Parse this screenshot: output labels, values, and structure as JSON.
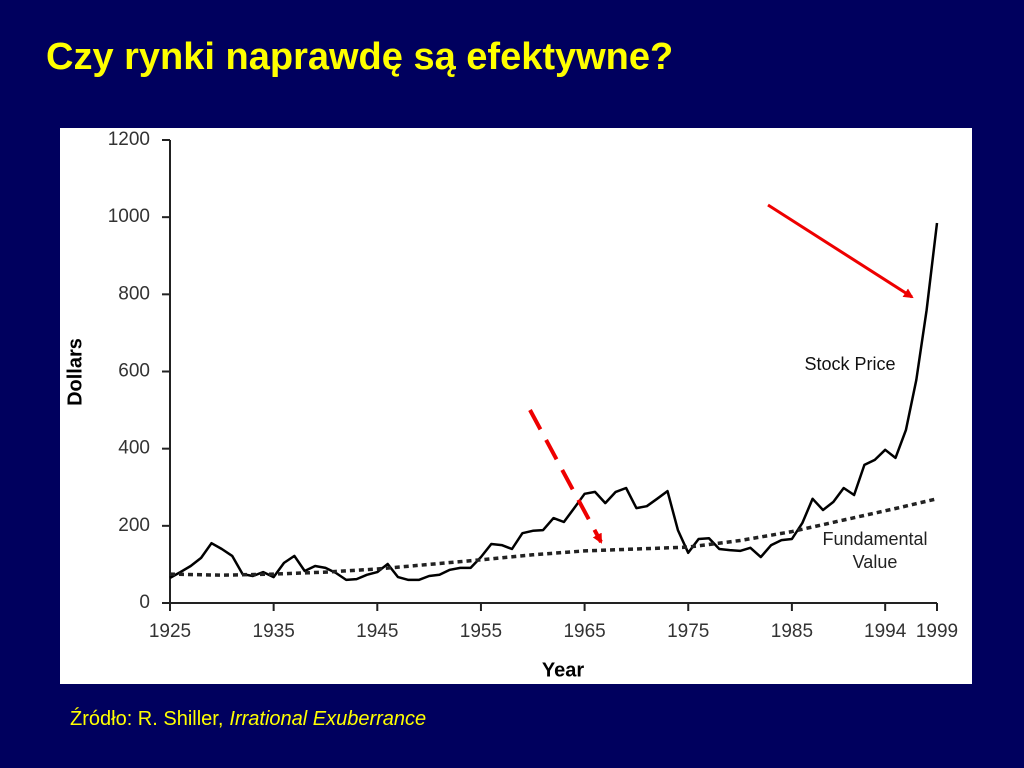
{
  "slide": {
    "title": "Czy rynki naprawdę są efektywne?",
    "source": {
      "prefix": "Źródło: R. Shiller,",
      "book": "Irrational Exuberrance"
    }
  },
  "chart_data": {
    "type": "line",
    "ylabel": "Dollars",
    "xlabel": "Year",
    "xlim": [
      1925,
      1999
    ],
    "ylim": [
      0,
      1200
    ],
    "xticks": [
      1925,
      1935,
      1945,
      1955,
      1965,
      1975,
      1985,
      1994,
      1999
    ],
    "yticks": [
      0,
      200,
      400,
      600,
      800,
      1000,
      1200
    ],
    "series": [
      {
        "name": "Stock Price",
        "color": "#000000",
        "style": "solid",
        "x": [
          1925,
          1926,
          1927,
          1928,
          1929,
          1930,
          1931,
          1932,
          1933,
          1934,
          1935,
          1936,
          1937,
          1938,
          1939,
          1940,
          1941,
          1942,
          1943,
          1944,
          1945,
          1946,
          1947,
          1948,
          1949,
          1950,
          1951,
          1952,
          1953,
          1954,
          1955,
          1956,
          1957,
          1958,
          1959,
          1960,
          1961,
          1962,
          1963,
          1964,
          1965,
          1966,
          1967,
          1968,
          1969,
          1970,
          1971,
          1972,
          1973,
          1974,
          1975,
          1976,
          1977,
          1978,
          1979,
          1980,
          1981,
          1982,
          1983,
          1984,
          1985,
          1986,
          1987,
          1988,
          1989,
          1990,
          1991,
          1992,
          1993,
          1994,
          1995,
          1996,
          1997,
          1998,
          1999
        ],
        "values": [
          65,
          80,
          96,
          117,
          155,
          140,
          122,
          75,
          70,
          80,
          67,
          104,
          122,
          83,
          96,
          91,
          78,
          60,
          62,
          73,
          80,
          101,
          67,
          60,
          60,
          70,
          73,
          86,
          91,
          91,
          119,
          153,
          150,
          140,
          181,
          187,
          189,
          220,
          210,
          246,
          283,
          288,
          259,
          288,
          298,
          246,
          251,
          270,
          290,
          189,
          130,
          166,
          168,
          140,
          137,
          135,
          143,
          119,
          150,
          163,
          166,
          207,
          270,
          241,
          262,
          298,
          280,
          358,
          371,
          397,
          376,
          448,
          578,
          759,
          985
        ]
      },
      {
        "name": "Fundamental Value",
        "color": "#222222",
        "style": "dashed",
        "x": [
          1925,
          1930,
          1935,
          1940,
          1945,
          1950,
          1955,
          1960,
          1965,
          1970,
          1975,
          1980,
          1985,
          1990,
          1995,
          1999
        ],
        "values": [
          75,
          72,
          75,
          80,
          88,
          100,
          112,
          125,
          135,
          140,
          145,
          162,
          185,
          215,
          245,
          270
        ]
      }
    ]
  }
}
